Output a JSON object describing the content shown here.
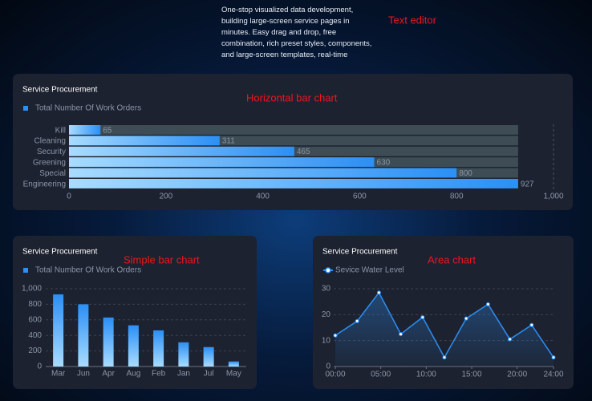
{
  "text_editor": {
    "text": "One-stop visualized data development, building large-screen service pages in minutes. Easy drag and drop, free combination, rich preset styles, components, and large-screen templates, real-time preview, easy to set up",
    "annotation": "Text editor"
  },
  "chart_data": [
    {
      "type": "hbar",
      "title": "Service Procurement",
      "annotation": "Horizontal bar chart",
      "categories": [
        "Kill",
        "Cleaning",
        "Security",
        "Greening",
        "Special",
        "Engineering"
      ],
      "series": [
        {
          "name": "Total Number Of Work Orders",
          "color": "#2b8ff5",
          "values": [
            65,
            311,
            465,
            630,
            800,
            927
          ]
        }
      ],
      "xlim": [
        0,
        1000
      ],
      "xticks": [
        0,
        200,
        400,
        600,
        800,
        {
          "value": 1000,
          "label": "1,000"
        }
      ]
    },
    {
      "type": "bar",
      "title": "Service Procurement",
      "annotation": "Simple bar chart",
      "categories": [
        "Mar",
        "Jun",
        "Apr",
        "Aug",
        "Feb",
        "Jan",
        "Jul",
        "May"
      ],
      "series": [
        {
          "name": "Total Number Of Work Orders",
          "color": "#2b8ff5",
          "values": [
            927,
            800,
            630,
            530,
            465,
            311,
            250,
            65
          ]
        }
      ],
      "ylim": [
        0,
        1000
      ],
      "yticks": [
        0,
        200,
        400,
        600,
        800,
        {
          "value": 1000,
          "label": "1,000"
        }
      ],
      "grid": true
    },
    {
      "type": "area",
      "title": "Service Procurement",
      "annotation": "Area chart",
      "x": [
        0,
        2.4,
        4.8,
        7.2,
        9.6,
        12,
        14.4,
        16.8,
        19.2,
        21.6,
        24
      ],
      "series": [
        {
          "name": "Sevice Water Level",
          "color": "#2b8ff5",
          "values": [
            12,
            17.5,
            28.5,
            12.5,
            19,
            3.5,
            18.5,
            24,
            10.5,
            16,
            3.5
          ]
        }
      ],
      "xlim": [
        0,
        24
      ],
      "xticks": [
        {
          "value": 0,
          "label": "00:00"
        },
        {
          "value": 5,
          "label": "05:00"
        },
        {
          "value": 10,
          "label": "10:00"
        },
        {
          "value": 15,
          "label": "15:00"
        },
        {
          "value": 20,
          "label": "20:00"
        },
        {
          "value": 24,
          "label": "24:00"
        }
      ],
      "ylim": [
        0,
        30
      ],
      "yticks": [
        0,
        10,
        20,
        30
      ],
      "grid": true
    }
  ]
}
